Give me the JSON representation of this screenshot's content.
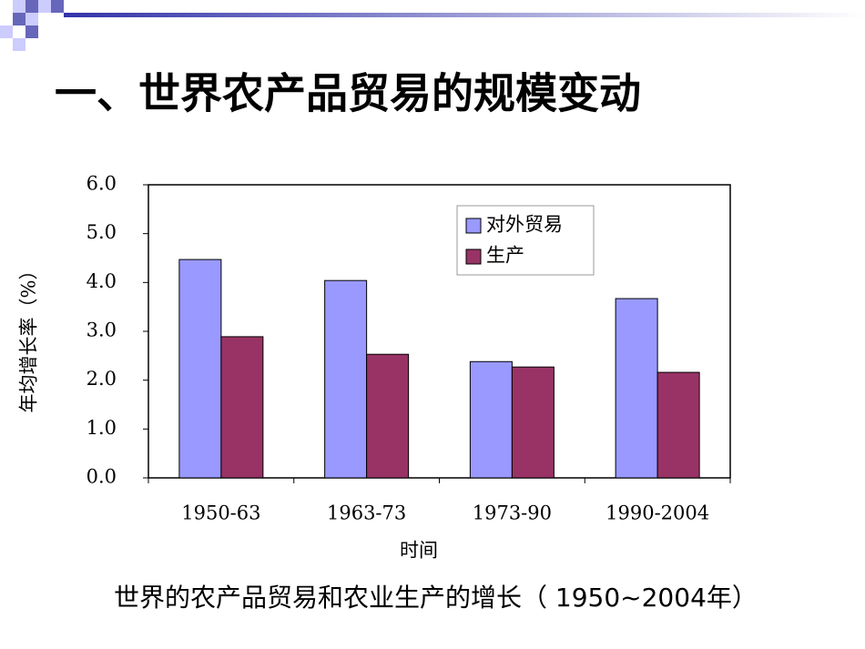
{
  "title": "一、世界农产品贸易的规模变动",
  "chart_data": {
    "type": "bar",
    "categories": [
      "1950-63",
      "1963-73",
      "1973-90",
      "1990-2004"
    ],
    "series": [
      {
        "name": "对外贸易",
        "color": "#9999ff",
        "values": [
          4.47,
          4.04,
          2.38,
          3.67
        ]
      },
      {
        "name": "生产",
        "color": "#993366",
        "values": [
          2.89,
          2.53,
          2.27,
          2.16
        ]
      }
    ],
    "ylim": [
      0,
      6
    ],
    "yticks": [
      {
        "value": 0,
        "label": "0.0"
      },
      {
        "value": 1,
        "label": "1.0"
      },
      {
        "value": 2,
        "label": "2.0"
      },
      {
        "value": 3,
        "label": "3.0"
      },
      {
        "value": 4,
        "label": "4.0"
      },
      {
        "value": 5,
        "label": "5.0"
      },
      {
        "value": 6,
        "label": "6.0"
      }
    ],
    "y_label": "年均增长率（%）",
    "x_label": "时间",
    "legend": "top-right"
  },
  "caption": "世界的农产品贸易和农业生产的增长（ 1950~2004年）"
}
